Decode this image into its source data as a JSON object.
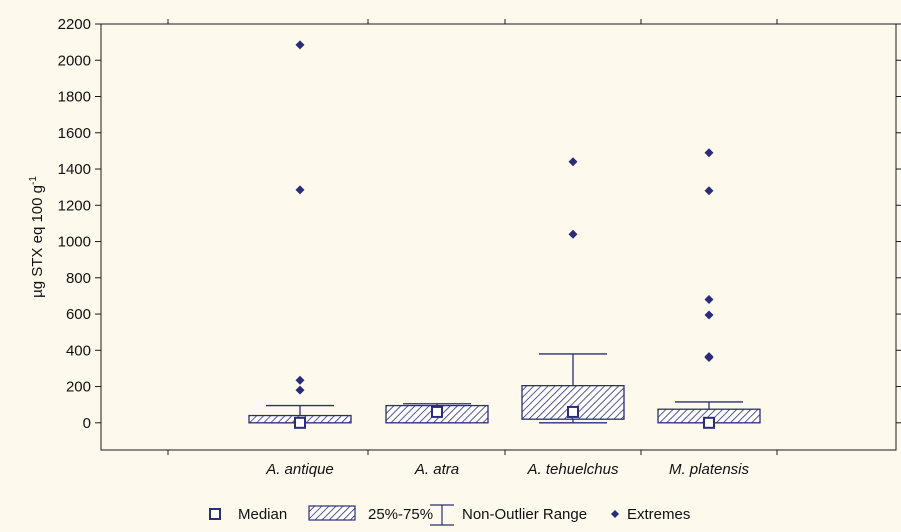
{
  "chart_data": {
    "type": "box",
    "ylabel": "µg STX eq 100 g",
    "ylabel_superscript": "-1",
    "ylim": [
      -150,
      2200
    ],
    "yticks": [
      0,
      200,
      400,
      600,
      800,
      1000,
      1200,
      1400,
      1600,
      1800,
      2000,
      2200
    ],
    "grid": false,
    "categories": [
      "A. antique",
      "A. atra",
      "A. tehuelchus",
      "M. platensis"
    ],
    "boxes": [
      {
        "category": "A. antique",
        "median": 0,
        "q1": 0,
        "q3": 40,
        "whisker_low": 0,
        "whisker_high": 95,
        "extremes": [
          180,
          235,
          1285,
          2085
        ]
      },
      {
        "category": "A. atra",
        "median": 60,
        "q1": 0,
        "q3": 95,
        "whisker_low": 0,
        "whisker_high": 105,
        "extremes": []
      },
      {
        "category": "A. tehuelchus",
        "median": 60,
        "q1": 20,
        "q3": 205,
        "whisker_low": 0,
        "whisker_high": 380,
        "extremes": [
          1040,
          1440
        ]
      },
      {
        "category": "M. platensis",
        "median": 0,
        "q1": 0,
        "q3": 75,
        "whisker_low": 0,
        "whisker_high": 115,
        "extremes": [
          360,
          365,
          595,
          680,
          1280,
          1490
        ]
      }
    ],
    "legend": {
      "position": "bottom",
      "items": [
        {
          "label": "Median",
          "symbol": "open-square"
        },
        {
          "label": "25%-75%",
          "symbol": "hatched-box"
        },
        {
          "label": "Non-Outlier Range",
          "symbol": "whisker"
        },
        {
          "label": "Extremes",
          "symbol": "diamond"
        }
      ]
    },
    "colors": {
      "primary": "#2b2d7a",
      "hatch": "#2b2d7a",
      "background": "#fdf9ec",
      "axis": "#1a1a1a"
    }
  }
}
